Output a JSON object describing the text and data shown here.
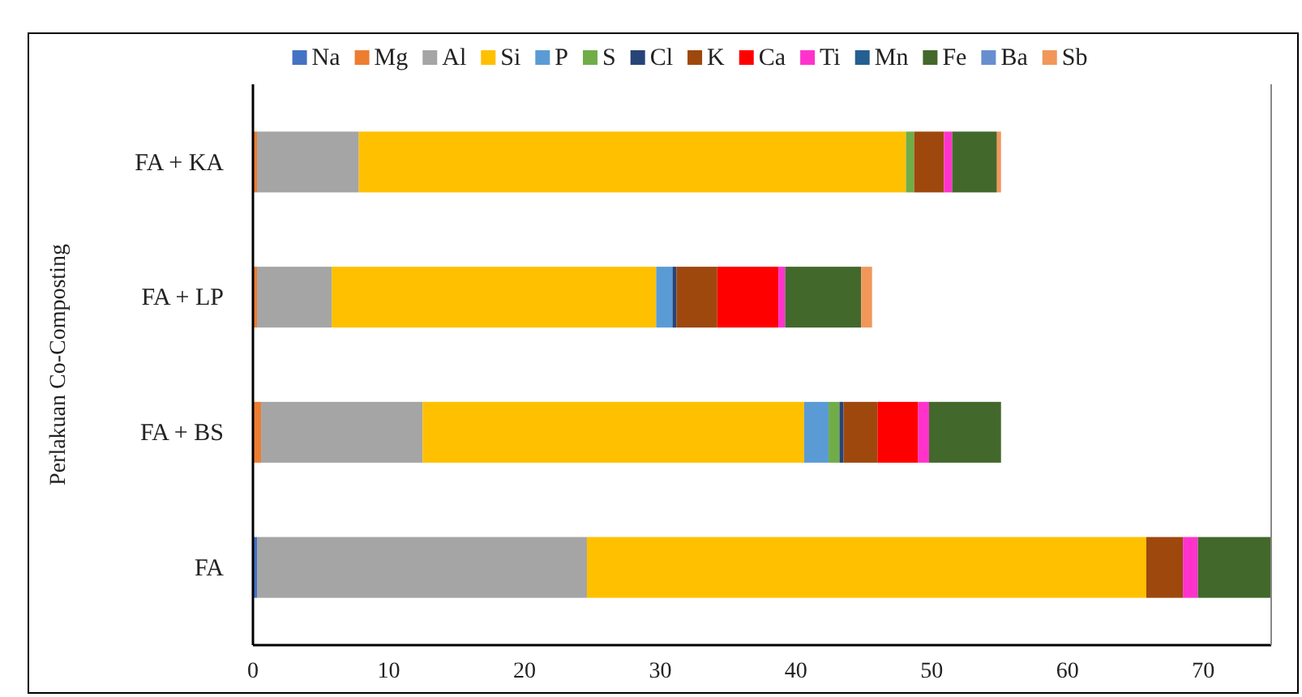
{
  "chart_data": {
    "type": "bar",
    "orientation": "horizontal",
    "stacked": true,
    "ylabel": "Perlakuan Co-Composting",
    "categories": [
      "FA + KA",
      "FA + LP",
      "FA + BS",
      "FA"
    ],
    "xlim": [
      0,
      75
    ],
    "xticks": [
      0,
      10,
      20,
      30,
      40,
      50,
      60,
      70
    ],
    "grid": false,
    "legend": "top",
    "series": [
      {
        "name": "Na",
        "color": "#4472c4",
        "values": [
          0,
          0,
          0,
          0.3
        ]
      },
      {
        "name": "Mg",
        "color": "#ed7d31",
        "values": [
          0.3,
          0.3,
          0.6,
          0
        ]
      },
      {
        "name": "Al",
        "color": "#a5a5a5",
        "values": [
          7.5,
          5.5,
          11.9,
          24.3
        ]
      },
      {
        "name": "Si",
        "color": "#ffc000",
        "values": [
          40.3,
          23.9,
          28.1,
          41.2
        ]
      },
      {
        "name": "P",
        "color": "#5b9bd5",
        "values": [
          0,
          1.2,
          1.8,
          0
        ]
      },
      {
        "name": "S",
        "color": "#70ad47",
        "values": [
          0.6,
          0,
          0.8,
          0
        ]
      },
      {
        "name": "Cl",
        "color": "#264478",
        "values": [
          0,
          0.3,
          0.3,
          0
        ]
      },
      {
        "name": "K",
        "color": "#9e480e",
        "values": [
          2.2,
          3.0,
          2.5,
          2.7
        ]
      },
      {
        "name": "Ca",
        "color": "#ff0000",
        "values": [
          0,
          4.5,
          3.0,
          0
        ]
      },
      {
        "name": "Ti",
        "color": "#ff33cc",
        "values": [
          0.6,
          0.5,
          0.8,
          1.1
        ]
      },
      {
        "name": "Mn",
        "color": "#255e91",
        "values": [
          0,
          0,
          0,
          0
        ]
      },
      {
        "name": "Fe",
        "color": "#43682b",
        "values": [
          3.3,
          5.6,
          5.3,
          5.4
        ]
      },
      {
        "name": "Ba",
        "color": "#698ed0",
        "values": [
          0,
          0,
          0,
          0
        ]
      },
      {
        "name": "Sb",
        "color": "#f1975a",
        "values": [
          0.3,
          0.8,
          0,
          0
        ]
      }
    ]
  }
}
